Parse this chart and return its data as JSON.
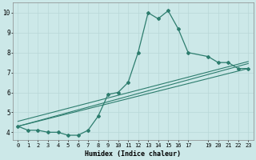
{
  "xlabel": "Humidex (Indice chaleur)",
  "bg_color": "#cce8e8",
  "grid_color": "#b8d8d8",
  "line_color": "#2d7d6e",
  "xlim": [
    -0.5,
    23.5
  ],
  "ylim": [
    3.6,
    10.5
  ],
  "yticks": [
    4,
    5,
    6,
    7,
    8,
    9,
    10
  ],
  "xticks": [
    0,
    1,
    2,
    3,
    4,
    5,
    6,
    7,
    8,
    9,
    10,
    11,
    12,
    13,
    14,
    15,
    16,
    17,
    19,
    20,
    21,
    22,
    23
  ],
  "series1_x": [
    0,
    1,
    2,
    3,
    4,
    5,
    6,
    7,
    8,
    9,
    10,
    11,
    12,
    13,
    14,
    15,
    16,
    17,
    19,
    20,
    21,
    22,
    23
  ],
  "series1_y": [
    4.3,
    4.1,
    4.1,
    4.0,
    4.0,
    3.85,
    3.85,
    4.1,
    4.8,
    5.9,
    6.0,
    6.5,
    8.0,
    10.0,
    9.7,
    10.1,
    9.2,
    8.0,
    7.8,
    7.5,
    7.5,
    7.2,
    7.2
  ],
  "trend1_x": [
    0,
    23
  ],
  "trend1_y": [
    4.3,
    7.2
  ],
  "trend2_x": [
    0,
    23
  ],
  "trend2_y": [
    4.55,
    7.55
  ],
  "trend3_x": [
    0,
    23
  ],
  "trend3_y": [
    4.3,
    7.45
  ]
}
